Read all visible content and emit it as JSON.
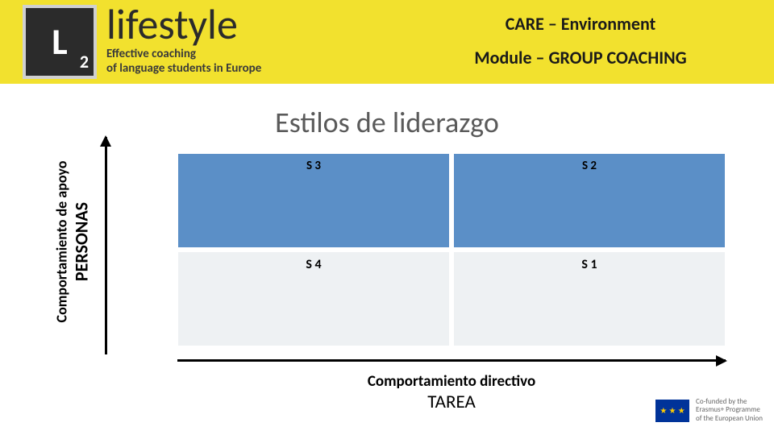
{
  "header": {
    "bg_color": "#f2e12e",
    "l2_square_bg": "#2b2b2b",
    "l2_text": "L",
    "l2_sub": "2",
    "brand": "lifestyle",
    "tagline1": "Effective coaching",
    "tagline2": "of language students in Europe",
    "care_line": "CARE – Environment",
    "module_line": "Module – GROUP COACHING"
  },
  "title": "Estilos de liderazgo",
  "y_axis": {
    "line1": "Comportamiento de apoyo",
    "line2": "PERSONAS"
  },
  "x_axis": {
    "line1": "Comportamiento directivo",
    "line2": "TAREA"
  },
  "matrix": {
    "type": "2x2-quadrant",
    "top_bg": "#5b8fc7",
    "bottom_bg": "#eef1f3",
    "cells": {
      "top_left": "S 3",
      "top_right": "S 2",
      "bottom_left": "S 4",
      "bottom_right": "S 1"
    }
  },
  "footer": {
    "eu_flag_bg": "#003399",
    "eu_stars": "★",
    "eu_text_l1": "Co-funded by the",
    "eu_text_l2": "Erasmus+ Programme",
    "eu_text_l3": "of the European Union"
  }
}
